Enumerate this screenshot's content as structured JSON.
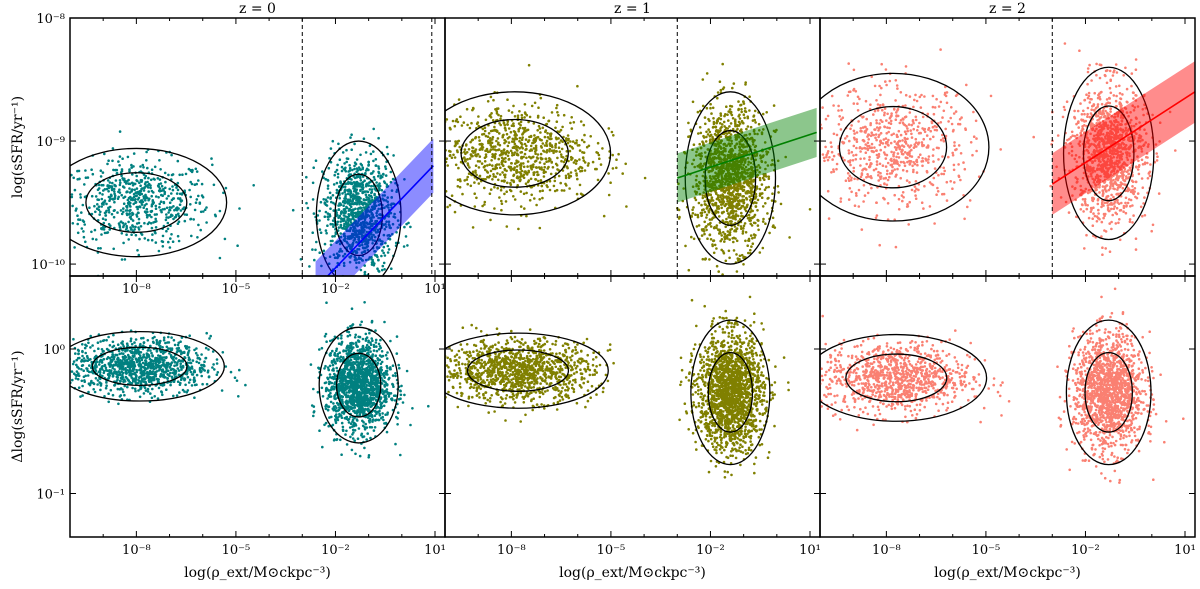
{
  "chart_data": [
    {
      "type": "scatter",
      "panel": "top-left",
      "title": "z = 0",
      "xlabel": "",
      "ylabel": "log(sSFR/yr⁻¹)",
      "xscale": "log",
      "yscale": "log",
      "xlim": [
        1e-10,
        20
      ],
      "ylim": [
        8e-11,
        1e-08
      ],
      "color": "#008080",
      "fit_color": "#0000ff",
      "vlines": [
        0.001,
        8
      ],
      "clusters": [
        {
          "x_center_log": -8.0,
          "x_spread_log": 1.6,
          "y_center_log": -9.5,
          "y_spread_log": 0.22,
          "n": 650
        },
        {
          "x_center_log": -1.3,
          "x_spread_log": 0.75,
          "y_center_log": -9.6,
          "y_spread_log": 0.3,
          "n": 1100
        }
      ],
      "fit_line": {
        "x_log": [
          -2.6,
          0.95
        ],
        "y_log": [
          -10.2,
          -9.2
        ]
      },
      "fit_band_halfwidth_log": 0.22,
      "x_ticks": [
        "10⁻⁸",
        "10⁻⁵",
        "10⁻²",
        "10¹"
      ],
      "y_ticks": [
        "10⁻¹⁰",
        "10⁻⁹",
        "10⁻⁸"
      ]
    },
    {
      "type": "scatter",
      "panel": "top-middle",
      "title": "z = 1",
      "xlabel": "",
      "ylabel": "",
      "xscale": "log",
      "yscale": "log",
      "xlim": [
        1e-10,
        20
      ],
      "ylim": [
        8e-11,
        1e-08
      ],
      "color": "#808000",
      "fit_color": "#008000",
      "vlines": [
        0.001
      ],
      "clusters": [
        {
          "x_center_log": -7.9,
          "x_spread_log": 1.7,
          "y_center_log": -9.1,
          "y_spread_log": 0.25,
          "n": 900
        },
        {
          "x_center_log": -1.4,
          "x_spread_log": 0.8,
          "y_center_log": -9.3,
          "y_spread_log": 0.35,
          "n": 1500
        }
      ],
      "fit_line": {
        "x_log": [
          -3.0,
          1.2
        ],
        "y_log": [
          -9.3,
          -8.93
        ]
      },
      "fit_band_halfwidth_log": 0.2,
      "x_ticks": [],
      "y_ticks": []
    },
    {
      "type": "scatter",
      "panel": "top-right",
      "title": "z = 2",
      "xlabel": "",
      "ylabel": "",
      "xscale": "log",
      "yscale": "log",
      "xlim": [
        1e-10,
        20
      ],
      "ylim": [
        8e-11,
        1e-08
      ],
      "color": "#fa8072",
      "fit_color": "#ff0000",
      "vlines": [
        0.001
      ],
      "clusters": [
        {
          "x_center_log": -7.8,
          "x_spread_log": 1.7,
          "y_center_log": -9.05,
          "y_spread_log": 0.3,
          "n": 700
        },
        {
          "x_center_log": -1.3,
          "x_spread_log": 0.8,
          "y_center_log": -9.1,
          "y_spread_log": 0.35,
          "n": 1200
        }
      ],
      "fit_line": {
        "x_log": [
          -3.0,
          1.3
        ],
        "y_log": [
          -9.35,
          -8.6
        ]
      },
      "fit_band_halfwidth_log": 0.25,
      "x_ticks": [],
      "y_ticks": []
    },
    {
      "type": "scatter",
      "panel": "bottom-left",
      "title": "",
      "xlabel": "log(ρ_ext/M⊙ckpc⁻³)",
      "ylabel": "Δlog(sSFR/yr⁻¹)",
      "xscale": "log",
      "yscale": "log",
      "xlim": [
        1e-10,
        20
      ],
      "ylim": [
        0.05,
        3.2
      ],
      "color": "#008080",
      "clusters": [
        {
          "x_center_log": -7.9,
          "x_spread_log": 1.5,
          "y_center_log": -0.12,
          "y_spread_log": 0.12,
          "n": 1100
        },
        {
          "x_center_log": -1.3,
          "x_spread_log": 0.7,
          "y_center_log": -0.25,
          "y_spread_log": 0.2,
          "n": 1500
        }
      ],
      "x_ticks": [
        "10⁻⁸",
        "10⁻⁵",
        "10⁻²",
        "10¹"
      ],
      "y_ticks": [
        "10⁻¹",
        "10⁰"
      ]
    },
    {
      "type": "scatter",
      "panel": "bottom-middle",
      "title": "",
      "xlabel": "log(ρ_ext/M⊙ckpc⁻³)",
      "ylabel": "",
      "xscale": "log",
      "yscale": "log",
      "xlim": [
        1e-10,
        20
      ],
      "ylim": [
        0.05,
        3.2
      ],
      "color": "#808000",
      "clusters": [
        {
          "x_center_log": -7.8,
          "x_spread_log": 1.6,
          "y_center_log": -0.15,
          "y_spread_log": 0.13,
          "n": 1200
        },
        {
          "x_center_log": -1.4,
          "x_spread_log": 0.7,
          "y_center_log": -0.3,
          "y_spread_log": 0.25,
          "n": 1800
        }
      ],
      "x_ticks": [
        "10⁻⁸",
        "10⁻⁵",
        "10⁻²",
        "10¹"
      ],
      "y_ticks": []
    },
    {
      "type": "scatter",
      "panel": "bottom-right",
      "title": "",
      "xlabel": "log(ρ_ext/M⊙ckpc⁻³)",
      "ylabel": "",
      "xscale": "log",
      "yscale": "log",
      "xlim": [
        1e-10,
        20
      ],
      "ylim": [
        0.05,
        3.2
      ],
      "color": "#fa8072",
      "clusters": [
        {
          "x_center_log": -7.7,
          "x_spread_log": 1.6,
          "y_center_log": -0.2,
          "y_spread_log": 0.15,
          "n": 1000
        },
        {
          "x_center_log": -1.3,
          "x_spread_log": 0.75,
          "y_center_log": -0.3,
          "y_spread_log": 0.25,
          "n": 1500
        }
      ],
      "x_ticks": [
        "10⁻⁸",
        "10⁻⁵",
        "10⁻²",
        "10¹"
      ],
      "y_ticks": []
    }
  ]
}
